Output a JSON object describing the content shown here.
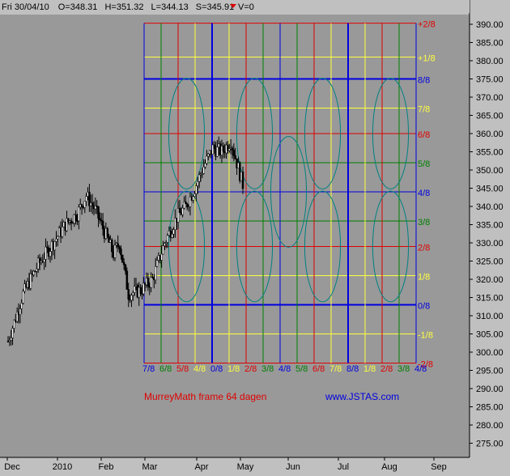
{
  "header": {
    "date": "Fri 30/04/10",
    "open": "O=348.31",
    "high": "H=351.32",
    "low": "L=344.13",
    "close": "S=345.91",
    "volume": "V=0",
    "down_marker_color": "#e00000"
  },
  "annotations": {
    "frame_label": "MurreyMath frame 64 dagen",
    "website": "www.JSTAS.com",
    "frame_label_color": "#e00000",
    "website_color": "#0000e0"
  },
  "chart_data": {
    "type": "candlestick",
    "plot_background": "#999999",
    "ylim": [
      272,
      393
    ],
    "y_ticks": [
      275,
      280,
      285,
      290,
      295,
      300,
      305,
      310,
      315,
      320,
      325,
      330,
      335,
      340,
      345,
      350,
      355,
      360,
      365,
      370,
      375,
      380,
      385,
      390
    ],
    "y_tick_labels": [
      "275.00",
      "280.00",
      "285.00",
      "290.00",
      "295.00",
      "300.00",
      "305.00",
      "310.00",
      "315.00",
      "320.00",
      "325.00",
      "330.00",
      "335.00",
      "340.00",
      "345.00",
      "350.00",
      "355.00",
      "360.00",
      "365.00",
      "370.00",
      "375.00",
      "380.00",
      "385.00",
      "390.00"
    ],
    "x_tick_labels": [
      "Dec",
      "2010",
      "Feb",
      "Mar",
      "Apr",
      "May",
      "Jun",
      "Jul",
      "Aug",
      "Sep"
    ],
    "price_series": [
      {
        "t": 0,
        "close": 303
      },
      {
        "t": 10,
        "close": 316
      },
      {
        "t": 20,
        "close": 324
      },
      {
        "t": 30,
        "close": 330
      },
      {
        "t": 38,
        "close": 335
      },
      {
        "t": 46,
        "close": 338
      },
      {
        "t": 52,
        "close": 343
      },
      {
        "t": 58,
        "close": 339
      },
      {
        "t": 64,
        "close": 333
      },
      {
        "t": 70,
        "close": 327
      },
      {
        "t": 74,
        "close": 330
      },
      {
        "t": 80,
        "close": 316
      },
      {
        "t": 88,
        "close": 317
      },
      {
        "t": 96,
        "close": 320
      },
      {
        "t": 104,
        "close": 330
      },
      {
        "t": 112,
        "close": 337
      },
      {
        "t": 118,
        "close": 340
      },
      {
        "t": 124,
        "close": 345
      },
      {
        "t": 130,
        "close": 351
      },
      {
        "t": 136,
        "close": 356
      },
      {
        "t": 142,
        "close": 355
      },
      {
        "t": 148,
        "close": 358
      },
      {
        "t": 152,
        "close": 352
      },
      {
        "t": 156,
        "close": 346
      }
    ],
    "murrey_math": {
      "levels": [
        {
          "label": "+2/8",
          "value": 390.3,
          "color": "#e00000",
          "label_color": "#e00000"
        },
        {
          "label": "+1/8",
          "value": 381.0,
          "color": "#ffff40",
          "label_color": "#ffff40"
        },
        {
          "label": "8/8",
          "value": 375.0,
          "color": "#0000e0",
          "label_color": "#0000e0",
          "major": true
        },
        {
          "label": "7/8",
          "value": 367.0,
          "color": "#ffff40",
          "label_color": "#ffff40"
        },
        {
          "label": "6/8",
          "value": 360.0,
          "color": "#e00000",
          "label_color": "#e00000"
        },
        {
          "label": "5/8",
          "value": 352.0,
          "color": "#008000",
          "label_color": "#008000"
        },
        {
          "label": "4/8",
          "value": 344.0,
          "color": "#0000e0",
          "label_color": "#0000e0"
        },
        {
          "label": "3/8",
          "value": 336.0,
          "color": "#008000",
          "label_color": "#008000"
        },
        {
          "label": "2/8",
          "value": 329.0,
          "color": "#e00000",
          "label_color": "#e00000"
        },
        {
          "label": "1/8",
          "value": 321.0,
          "color": "#ffff40",
          "label_color": "#ffff40"
        },
        {
          "label": "0/8",
          "value": 313.0,
          "color": "#0000e0",
          "label_color": "#0000e0",
          "major": true
        },
        {
          "label": "-1/8",
          "value": 305.0,
          "color": "#ffff40",
          "label_color": "#ffff40"
        },
        {
          "label": "-2/8",
          "value": 297.0,
          "color": "#e00000",
          "label_color": "#e00000"
        }
      ],
      "time_divisions": [
        {
          "label": "7/8",
          "color": "#0000e0",
          "major": false
        },
        {
          "label": "6/8",
          "color": "#008000"
        },
        {
          "label": "5/8",
          "color": "#e00000"
        },
        {
          "label": "4/8",
          "color": "#ffff40"
        },
        {
          "label": "0/8",
          "color": "#0000e0",
          "major": true
        },
        {
          "label": "1/8",
          "color": "#ffff40"
        },
        {
          "label": "2/8",
          "color": "#e00000"
        },
        {
          "label": "3/8",
          "color": "#008000"
        },
        {
          "label": "4/8",
          "color": "#0000e0"
        },
        {
          "label": "5/8",
          "color": "#008000"
        },
        {
          "label": "6/8",
          "color": "#e00000"
        },
        {
          "label": "7/8",
          "color": "#ffff40"
        },
        {
          "label": "8/8",
          "color": "#0000e0",
          "major": true
        },
        {
          "label": "1/8",
          "color": "#ffff40"
        },
        {
          "label": "2/8",
          "color": "#e00000"
        },
        {
          "label": "3/8",
          "color": "#008000"
        },
        {
          "label": "4/8",
          "color": "#0000e0"
        }
      ],
      "circle_color": "#008080"
    }
  }
}
